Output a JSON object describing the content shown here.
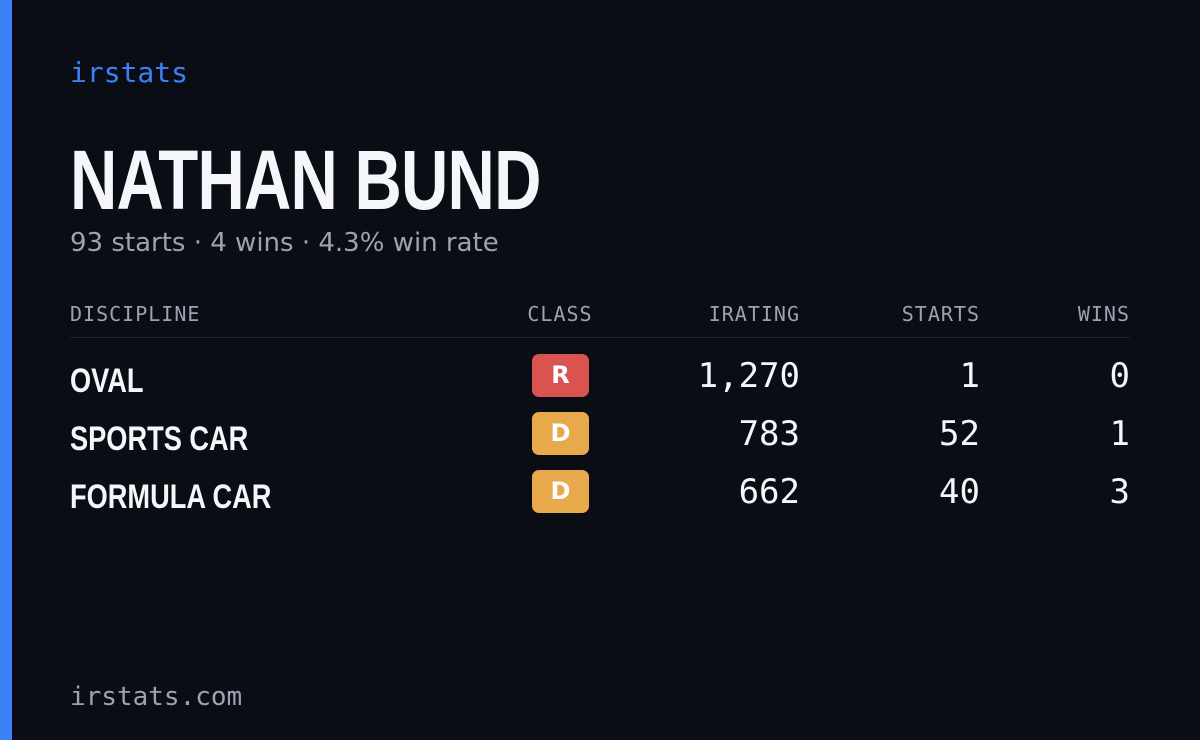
{
  "header": {
    "brand": "irstats",
    "name": "NATHAN BUND",
    "summary": "93 starts · 4 wins · 4.3% win rate"
  },
  "table": {
    "columns": [
      "DISCIPLINE",
      "CLASS",
      "IRATING",
      "STARTS",
      "WINS"
    ],
    "rows": [
      [
        "OVAL",
        "R",
        "1,270",
        "1",
        "0"
      ],
      [
        "SPORTS CAR",
        "D",
        "783",
        "52",
        "1"
      ],
      [
        "FORMULA CAR",
        "D",
        "662",
        "40",
        "3"
      ]
    ]
  },
  "footer": {
    "site": "irstats.com"
  }
}
